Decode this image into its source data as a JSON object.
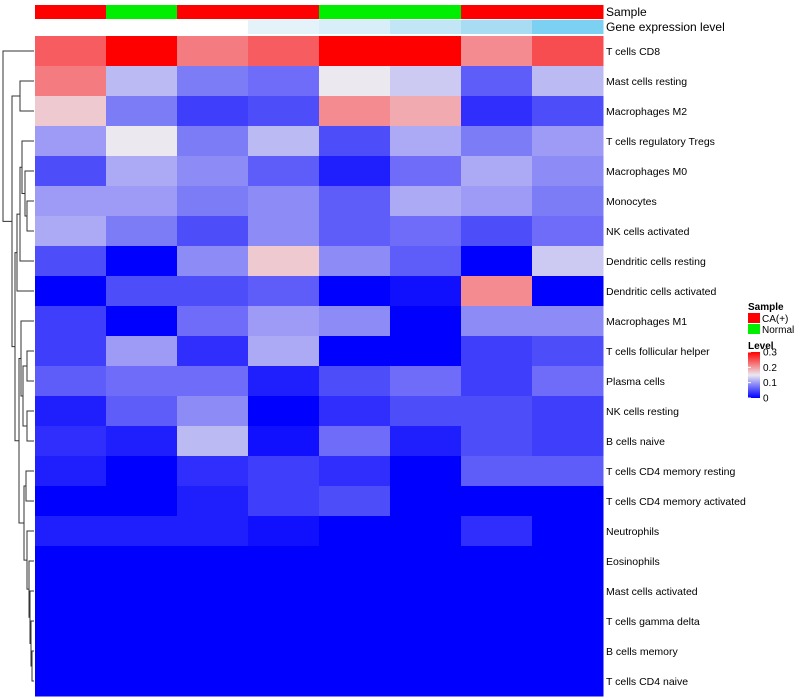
{
  "chart_data": {
    "type": "heatmap",
    "annotation_labels": {
      "sample": "Sample",
      "expression": "Gene expression level"
    },
    "sample_annotation": [
      "CA(+)",
      "Normal",
      "CA(+)",
      "CA(+)",
      "Normal",
      "Normal",
      "CA(+)",
      "CA(+)"
    ],
    "expression_annotation": [
      0,
      0,
      1,
      2,
      3,
      4,
      5,
      6
    ],
    "expression_palette": [
      "#ffffff",
      "#ffffff",
      "#e4f3fa",
      "#d8eef8",
      "#c2e6f6",
      "#a8dcf3",
      "#7cd0f1",
      "#6ccaf0"
    ],
    "rows": [
      "T cells CD8",
      "Mast cells resting",
      "Macrophages M2",
      "T cells regulatory  Tregs",
      "Macrophages M0",
      "Monocytes",
      "NK cells activated",
      "Dendritic cells resting",
      "Dendritic cells activated",
      "Macrophages M1",
      "T cells follicular helper",
      "Plasma cells",
      "NK cells resting",
      "B cells naive",
      "T cells CD4 memory resting",
      "T cells CD4 memory activated",
      "Neutrophils",
      "Eosinophils",
      "Mast cells activated",
      "T cells gamma delta",
      "B cells memory",
      "T cells CD4 naive"
    ],
    "values": [
      [
        0.24,
        0.3,
        0.22,
        0.24,
        0.3,
        0.3,
        0.21,
        0.25
      ],
      [
        0.22,
        0.12,
        0.08,
        0.07,
        0.15,
        0.13,
        0.06,
        0.12
      ],
      [
        0.17,
        0.08,
        0.04,
        0.05,
        0.21,
        0.19,
        0.03,
        0.05
      ],
      [
        0.1,
        0.15,
        0.08,
        0.12,
        0.05,
        0.11,
        0.08,
        0.1
      ],
      [
        0.05,
        0.11,
        0.09,
        0.06,
        0.02,
        0.07,
        0.11,
        0.09
      ],
      [
        0.1,
        0.1,
        0.08,
        0.09,
        0.06,
        0.11,
        0.1,
        0.08
      ],
      [
        0.11,
        0.08,
        0.05,
        0.09,
        0.06,
        0.07,
        0.05,
        0.07
      ],
      [
        0.05,
        0.0,
        0.09,
        0.17,
        0.09,
        0.06,
        0.0,
        0.13
      ],
      [
        0.0,
        0.05,
        0.05,
        0.06,
        0.0,
        0.01,
        0.21,
        0.0
      ],
      [
        0.04,
        0.0,
        0.07,
        0.1,
        0.09,
        0.0,
        0.09,
        0.09
      ],
      [
        0.04,
        0.1,
        0.03,
        0.11,
        0.0,
        0.0,
        0.04,
        0.05
      ],
      [
        0.06,
        0.07,
        0.07,
        0.02,
        0.05,
        0.07,
        0.04,
        0.07
      ],
      [
        0.02,
        0.06,
        0.09,
        0.0,
        0.03,
        0.05,
        0.05,
        0.04
      ],
      [
        0.03,
        0.02,
        0.12,
        0.01,
        0.07,
        0.02,
        0.05,
        0.04
      ],
      [
        0.02,
        0.0,
        0.03,
        0.04,
        0.03,
        0.0,
        0.06,
        0.06
      ],
      [
        0.0,
        0.0,
        0.02,
        0.04,
        0.05,
        0.0,
        0.0,
        0.0
      ],
      [
        0.02,
        0.02,
        0.02,
        0.01,
        0.0,
        0.0,
        0.03,
        0.0
      ],
      [
        0.0,
        0.0,
        0.0,
        0.0,
        0.0,
        0.0,
        0.0,
        0.0
      ],
      [
        0.0,
        0.0,
        0.0,
        0.0,
        0.0,
        0.0,
        0.0,
        0.0
      ],
      [
        0.0,
        0.0,
        0.0,
        0.0,
        0.0,
        0.0,
        0.0,
        0.0
      ],
      [
        0.0,
        0.0,
        0.0,
        0.0,
        0.0,
        0.0,
        0.0,
        0.0
      ],
      [
        0.0,
        0.0,
        0.0,
        0.0,
        0.0,
        0.0,
        0.0,
        0.0
      ]
    ],
    "color_scale": {
      "min": 0,
      "mid": 0.15,
      "max": 0.3,
      "low_color": "#0000ff",
      "mid_color": "#ebe8f0",
      "high_color": "#ff0000"
    },
    "legend": {
      "sample_title": "Sample",
      "sample_items": [
        {
          "label": "CA(+)",
          "color": "#ff0000"
        },
        {
          "label": "Normal",
          "color": "#00ee00"
        }
      ],
      "level_title": "Level",
      "level_ticks": [
        "0.3",
        "0.2",
        "0.1",
        "0"
      ],
      "level_tick_values": [
        0.3,
        0.2,
        0.1,
        0
      ]
    }
  }
}
